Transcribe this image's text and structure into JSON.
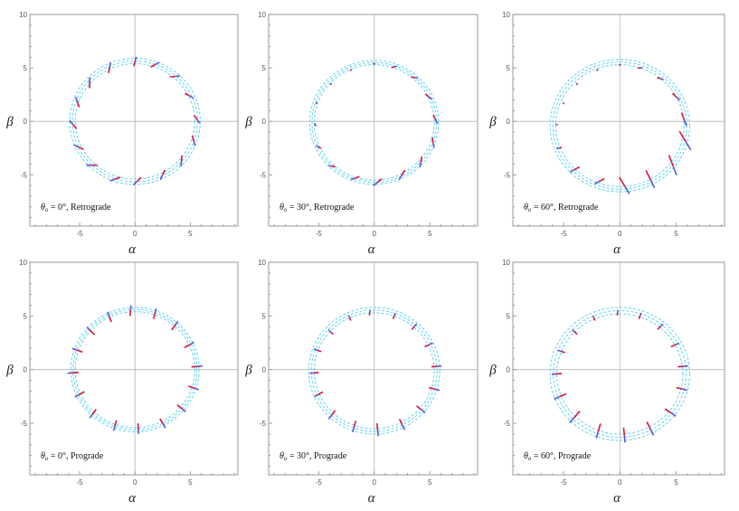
{
  "chart_data": [
    {
      "type": "scatter",
      "caption_theta": "θ",
      "caption_sub": "o",
      "caption_rest": " = 0°, Retrograde",
      "xlabel": "α",
      "ylabel": "β",
      "xlim": [
        -10,
        10
      ],
      "ylim": [
        -10,
        10
      ],
      "xticks": [
        "-5",
        "0",
        "5"
      ],
      "xtick_values": [
        -5,
        0,
        5
      ],
      "yticks": [
        "-5",
        "0",
        "5",
        "10"
      ],
      "ytick_values": [
        -5,
        0,
        5,
        10
      ],
      "ring": {
        "center": [
          0,
          0
        ],
        "radii": [
          5.4,
          5.65,
          5.9
        ]
      },
      "markers": [
        {
          "x": 0,
          "y": 5.6,
          "angle": 75,
          "len": 0.9,
          "blue_frac": 0.45
        },
        {
          "x": 1.8,
          "y": 5.3,
          "angle": 30,
          "len": 0.9,
          "blue_frac": 0.45
        },
        {
          "x": 3.6,
          "y": 4.2,
          "angle": 5,
          "len": 0.9,
          "blue_frac": 0.45
        },
        {
          "x": 4.9,
          "y": 2.4,
          "angle": -30,
          "len": 0.9,
          "blue_frac": 0.45
        },
        {
          "x": 5.6,
          "y": 0.2,
          "angle": -55,
          "len": 0.9,
          "blue_frac": 0.45
        },
        {
          "x": 5.3,
          "y": -1.8,
          "angle": -75,
          "len": 1.0,
          "blue_frac": 0.45
        },
        {
          "x": 4.2,
          "y": -3.7,
          "angle": -95,
          "len": 1.0,
          "blue_frac": 0.45
        },
        {
          "x": 2.5,
          "y": -5.0,
          "angle": -115,
          "len": 1.0,
          "blue_frac": 0.45
        },
        {
          "x": 0.2,
          "y": -5.6,
          "angle": -135,
          "len": 1.0,
          "blue_frac": 0.45
        },
        {
          "x": -1.8,
          "y": -5.4,
          "angle": -160,
          "len": 1.0,
          "blue_frac": 0.45
        },
        {
          "x": -3.9,
          "y": -4.1,
          "angle": -180,
          "len": 1.0,
          "blue_frac": 0.45
        },
        {
          "x": -5.1,
          "y": -2.4,
          "angle": 155,
          "len": 1.0,
          "blue_frac": 0.45
        },
        {
          "x": -5.6,
          "y": -0.3,
          "angle": 130,
          "len": 1.0,
          "blue_frac": 0.45
        },
        {
          "x": -5.2,
          "y": 1.8,
          "angle": 110,
          "len": 1.0,
          "blue_frac": 0.45
        },
        {
          "x": -4.1,
          "y": 3.6,
          "angle": 90,
          "len": 1.0,
          "blue_frac": 0.45
        },
        {
          "x": -2.3,
          "y": 5.0,
          "angle": 80,
          "len": 1.0,
          "blue_frac": 0.45
        }
      ]
    },
    {
      "type": "scatter",
      "caption_theta": "θ",
      "caption_sub": "o",
      "caption_rest": " = 30°, Retrograde",
      "xlabel": "α",
      "ylabel": "β",
      "xlim": [
        -10,
        10
      ],
      "ylim": [
        -10,
        10
      ],
      "xticks": [
        "-5",
        "0",
        "5"
      ],
      "xtick_values": [
        -5,
        0,
        5
      ],
      "yticks": [
        "-5",
        "0",
        "5",
        "10"
      ],
      "ytick_values": [
        -5,
        0,
        5,
        10
      ],
      "ring": {
        "center": [
          0,
          -0.1
        ],
        "radii": [
          5.4,
          5.6,
          5.8
        ]
      },
      "markers": [
        {
          "x": 0,
          "y": 5.4,
          "angle": 40,
          "len": 0.2,
          "blue_frac": 0.5
        },
        {
          "x": 1.8,
          "y": 5.1,
          "angle": 15,
          "len": 0.5,
          "blue_frac": 0.45
        },
        {
          "x": 3.6,
          "y": 4.1,
          "angle": -10,
          "len": 0.6,
          "blue_frac": 0.45
        },
        {
          "x": 4.9,
          "y": 2.3,
          "angle": -40,
          "len": 0.8,
          "blue_frac": 0.45
        },
        {
          "x": 5.5,
          "y": 0.2,
          "angle": -65,
          "len": 0.9,
          "blue_frac": 0.45
        },
        {
          "x": 5.3,
          "y": -2.0,
          "angle": -80,
          "len": 1.0,
          "blue_frac": 0.45
        },
        {
          "x": 4.2,
          "y": -3.8,
          "angle": -100,
          "len": 1.0,
          "blue_frac": 0.45
        },
        {
          "x": 2.5,
          "y": -5.0,
          "angle": -120,
          "len": 1.0,
          "blue_frac": 0.45
        },
        {
          "x": 0.3,
          "y": -5.7,
          "angle": -140,
          "len": 1.0,
          "blue_frac": 0.45
        },
        {
          "x": -1.7,
          "y": -5.3,
          "angle": -160,
          "len": 0.8,
          "blue_frac": 0.45
        },
        {
          "x": -3.8,
          "y": -4.2,
          "angle": 170,
          "len": 0.6,
          "blue_frac": 0.45
        },
        {
          "x": -5.0,
          "y": -2.4,
          "angle": 150,
          "len": 0.5,
          "blue_frac": 0.5
        },
        {
          "x": -5.3,
          "y": -0.3,
          "angle": 120,
          "len": 0.3,
          "blue_frac": 0.5
        },
        {
          "x": -5.2,
          "y": 1.7,
          "angle": 100,
          "len": 0.2,
          "blue_frac": 0.5
        },
        {
          "x": -3.9,
          "y": 3.5,
          "angle": 80,
          "len": 0.2,
          "blue_frac": 0.5
        },
        {
          "x": -2.1,
          "y": 4.8,
          "angle": 60,
          "len": 0.2,
          "blue_frac": 0.5
        }
      ]
    },
    {
      "type": "scatter",
      "caption_theta": "θ",
      "caption_sub": "o",
      "caption_rest": " = 60°, Retrograde",
      "xlabel": "α",
      "ylabel": "β",
      "xlim": [
        -10,
        10
      ],
      "ylim": [
        -10,
        10
      ],
      "xticks": [
        "-5",
        "0",
        "5"
      ],
      "xtick_values": [
        -5,
        0,
        5
      ],
      "yticks": [
        "-5",
        "0",
        "5",
        "10"
      ],
      "ytick_values": [
        -5,
        0,
        5,
        10
      ],
      "ring": {
        "center": [
          0,
          -0.4
        ],
        "radii": [
          5.7,
          5.95,
          6.2
        ]
      },
      "markers": [
        {
          "x": 0,
          "y": 5.3,
          "angle": 20,
          "len": 0.2,
          "blue_frac": 0.5
        },
        {
          "x": 1.8,
          "y": 5.0,
          "angle": 10,
          "len": 0.4,
          "blue_frac": 0.5
        },
        {
          "x": 3.6,
          "y": 4.0,
          "angle": -20,
          "len": 0.6,
          "blue_frac": 0.45
        },
        {
          "x": 5.0,
          "y": 2.3,
          "angle": -45,
          "len": 0.9,
          "blue_frac": 0.45
        },
        {
          "x": 5.7,
          "y": 0.2,
          "angle": -70,
          "len": 1.3,
          "blue_frac": 0.45
        },
        {
          "x": 5.8,
          "y": -1.8,
          "angle": -60,
          "len": 2.0,
          "blue_frac": 0.45
        },
        {
          "x": 4.7,
          "y": -4.1,
          "angle": -70,
          "len": 2.0,
          "blue_frac": 0.45
        },
        {
          "x": 2.7,
          "y": -5.4,
          "angle": -65,
          "len": 1.8,
          "blue_frac": 0.45
        },
        {
          "x": 0.4,
          "y": -6.0,
          "angle": -60,
          "len": 1.8,
          "blue_frac": 0.45
        },
        {
          "x": -1.8,
          "y": -5.6,
          "angle": -150,
          "len": 1.0,
          "blue_frac": 0.45
        },
        {
          "x": -4.0,
          "y": -4.5,
          "angle": -150,
          "len": 1.0,
          "blue_frac": 0.45
        },
        {
          "x": -5.4,
          "y": -2.5,
          "angle": -165,
          "len": 0.5,
          "blue_frac": 0.5
        },
        {
          "x": -5.6,
          "y": -0.3,
          "angle": 150,
          "len": 0.2,
          "blue_frac": 0.5
        },
        {
          "x": -5.0,
          "y": 1.7,
          "angle": 110,
          "len": 0.2,
          "blue_frac": 0.5
        },
        {
          "x": -3.8,
          "y": 3.5,
          "angle": 80,
          "len": 0.2,
          "blue_frac": 0.5
        },
        {
          "x": -2.0,
          "y": 4.8,
          "angle": 50,
          "len": 0.2,
          "blue_frac": 0.5
        }
      ]
    },
    {
      "type": "scatter",
      "caption_theta": "θ",
      "caption_sub": "o",
      "caption_rest": " = 0°, Prograde",
      "xlabel": "α",
      "ylabel": "β",
      "xlim": [
        -10,
        10
      ],
      "ylim": [
        -10,
        10
      ],
      "xticks": [
        "-5",
        "0",
        "5"
      ],
      "xtick_values": [
        -5,
        0,
        5
      ],
      "yticks": [
        "-5",
        "0",
        "5",
        "10"
      ],
      "ytick_values": [
        -5,
        0,
        5,
        10
      ],
      "ring": {
        "center": [
          0,
          0
        ],
        "radii": [
          5.4,
          5.6,
          5.8
        ]
      },
      "markers": [
        {
          "x": -0.4,
          "y": 5.5,
          "angle": 85,
          "len": 1.0,
          "blue_frac": 0.4
        },
        {
          "x": 1.8,
          "y": 5.2,
          "angle": 75,
          "len": 1.0,
          "blue_frac": 0.4
        },
        {
          "x": 3.6,
          "y": 4.1,
          "angle": 55,
          "len": 1.0,
          "blue_frac": 0.4
        },
        {
          "x": 4.9,
          "y": 2.3,
          "angle": 30,
          "len": 1.0,
          "blue_frac": 0.4
        },
        {
          "x": 5.6,
          "y": 0.3,
          "angle": 5,
          "len": 1.0,
          "blue_frac": 0.4
        },
        {
          "x": 5.3,
          "y": -1.7,
          "angle": -20,
          "len": 1.0,
          "blue_frac": 0.4
        },
        {
          "x": 4.2,
          "y": -3.6,
          "angle": -40,
          "len": 1.0,
          "blue_frac": 0.4
        },
        {
          "x": 2.5,
          "y": -5.0,
          "angle": -60,
          "len": 1.0,
          "blue_frac": 0.4
        },
        {
          "x": 0.3,
          "y": -5.5,
          "angle": -85,
          "len": 1.0,
          "blue_frac": 0.4
        },
        {
          "x": -1.8,
          "y": -5.2,
          "angle": -105,
          "len": 1.0,
          "blue_frac": 0.4
        },
        {
          "x": -3.8,
          "y": -4.1,
          "angle": -125,
          "len": 1.0,
          "blue_frac": 0.4
        },
        {
          "x": -5.0,
          "y": -2.3,
          "angle": -150,
          "len": 1.0,
          "blue_frac": 0.4
        },
        {
          "x": -5.6,
          "y": -0.3,
          "angle": -175,
          "len": 1.0,
          "blue_frac": 0.4
        },
        {
          "x": -5.2,
          "y": 1.8,
          "angle": 160,
          "len": 1.0,
          "blue_frac": 0.4
        },
        {
          "x": -4.0,
          "y": 3.6,
          "angle": 135,
          "len": 1.0,
          "blue_frac": 0.4
        },
        {
          "x": -2.3,
          "y": 4.9,
          "angle": 110,
          "len": 1.0,
          "blue_frac": 0.4
        }
      ]
    },
    {
      "type": "scatter",
      "caption_theta": "θ",
      "caption_sub": "o",
      "caption_rest": " = 30°, Prograde",
      "xlabel": "α",
      "ylabel": "β",
      "xlim": [
        -10,
        10
      ],
      "ylim": [
        -10,
        10
      ],
      "xticks": [
        "-5",
        "0",
        "5"
      ],
      "xtick_values": [
        -5,
        0,
        5
      ],
      "yticks": [
        "-5",
        "0",
        "5",
        "10"
      ],
      "ytick_values": [
        -5,
        0,
        5,
        10
      ],
      "ring": {
        "center": [
          0,
          -0.1
        ],
        "radii": [
          5.4,
          5.65,
          5.9
        ]
      },
      "markers": [
        {
          "x": -0.4,
          "y": 5.3,
          "angle": 80,
          "len": 0.5,
          "blue_frac": 0.45
        },
        {
          "x": 1.8,
          "y": 5.0,
          "angle": 70,
          "len": 0.6,
          "blue_frac": 0.45
        },
        {
          "x": 3.6,
          "y": 4.0,
          "angle": 50,
          "len": 0.7,
          "blue_frac": 0.45
        },
        {
          "x": 4.9,
          "y": 2.3,
          "angle": 25,
          "len": 0.8,
          "blue_frac": 0.45
        },
        {
          "x": 5.6,
          "y": 0.3,
          "angle": 5,
          "len": 0.9,
          "blue_frac": 0.45
        },
        {
          "x": 5.4,
          "y": -1.8,
          "angle": -15,
          "len": 1.0,
          "blue_frac": 0.45
        },
        {
          "x": 4.2,
          "y": -3.7,
          "angle": -40,
          "len": 1.0,
          "blue_frac": 0.45
        },
        {
          "x": 2.5,
          "y": -5.1,
          "angle": -65,
          "len": 1.1,
          "blue_frac": 0.45
        },
        {
          "x": 0.3,
          "y": -5.6,
          "angle": -85,
          "len": 1.2,
          "blue_frac": 0.45
        },
        {
          "x": -1.8,
          "y": -5.3,
          "angle": -105,
          "len": 1.1,
          "blue_frac": 0.45
        },
        {
          "x": -3.8,
          "y": -4.2,
          "angle": -125,
          "len": 1.0,
          "blue_frac": 0.45
        },
        {
          "x": -5.0,
          "y": -2.3,
          "angle": -150,
          "len": 0.9,
          "blue_frac": 0.45
        },
        {
          "x": -5.4,
          "y": -0.3,
          "angle": -175,
          "len": 0.8,
          "blue_frac": 0.45
        },
        {
          "x": -5.1,
          "y": 1.8,
          "angle": 160,
          "len": 0.7,
          "blue_frac": 0.45
        },
        {
          "x": -3.9,
          "y": 3.5,
          "angle": 135,
          "len": 0.6,
          "blue_frac": 0.45
        },
        {
          "x": -2.2,
          "y": 4.8,
          "angle": 110,
          "len": 0.5,
          "blue_frac": 0.45
        }
      ]
    },
    {
      "type": "scatter",
      "caption_theta": "θ",
      "caption_sub": "o",
      "caption_rest": " = 60°, Prograde",
      "xlabel": "α",
      "ylabel": "β",
      "xlim": [
        -10,
        10
      ],
      "ylim": [
        -10,
        10
      ],
      "xticks": [
        "-5",
        "0",
        "5"
      ],
      "xtick_values": [
        -5,
        0,
        5
      ],
      "yticks": [
        "-5",
        "0",
        "5",
        "10"
      ],
      "ytick_values": [
        -5,
        0,
        5,
        10
      ],
      "ring": {
        "center": [
          0,
          -0.4
        ],
        "radii": [
          5.6,
          5.9,
          6.2
        ]
      },
      "markers": [
        {
          "x": -0.2,
          "y": 5.3,
          "angle": 85,
          "len": 0.5,
          "blue_frac": 0.45
        },
        {
          "x": 1.8,
          "y": 5.0,
          "angle": 70,
          "len": 0.6,
          "blue_frac": 0.45
        },
        {
          "x": 3.6,
          "y": 4.0,
          "angle": 45,
          "len": 0.7,
          "blue_frac": 0.45
        },
        {
          "x": 4.9,
          "y": 2.3,
          "angle": 25,
          "len": 0.8,
          "blue_frac": 0.45
        },
        {
          "x": 5.6,
          "y": 0.3,
          "angle": 5,
          "len": 0.9,
          "blue_frac": 0.45
        },
        {
          "x": 5.5,
          "y": -1.8,
          "angle": -15,
          "len": 1.0,
          "blue_frac": 0.45
        },
        {
          "x": 4.5,
          "y": -4.0,
          "angle": -35,
          "len": 1.2,
          "blue_frac": 0.45
        },
        {
          "x": 2.7,
          "y": -5.5,
          "angle": -65,
          "len": 1.4,
          "blue_frac": 0.45
        },
        {
          "x": 0.4,
          "y": -6.1,
          "angle": -85,
          "len": 1.4,
          "blue_frac": 0.45
        },
        {
          "x": -1.9,
          "y": -5.7,
          "angle": -105,
          "len": 1.4,
          "blue_frac": 0.45
        },
        {
          "x": -4.0,
          "y": -4.4,
          "angle": -130,
          "len": 1.4,
          "blue_frac": 0.45
        },
        {
          "x": -5.3,
          "y": -2.5,
          "angle": -155,
          "len": 1.2,
          "blue_frac": 0.45
        },
        {
          "x": -5.6,
          "y": -0.4,
          "angle": -175,
          "len": 0.9,
          "blue_frac": 0.45
        },
        {
          "x": -5.2,
          "y": 1.7,
          "angle": 160,
          "len": 0.7,
          "blue_frac": 0.45
        },
        {
          "x": -4.0,
          "y": 3.5,
          "angle": 135,
          "len": 0.6,
          "blue_frac": 0.45
        },
        {
          "x": -2.3,
          "y": 4.8,
          "angle": 110,
          "len": 0.5,
          "blue_frac": 0.45
        }
      ]
    }
  ],
  "colors": {
    "ring": "#5fd3f0",
    "segment_red": "#e0103a",
    "segment_blue": "#5a55d8",
    "frame": "#9a9a9a",
    "axes": "#b5b5b5"
  }
}
